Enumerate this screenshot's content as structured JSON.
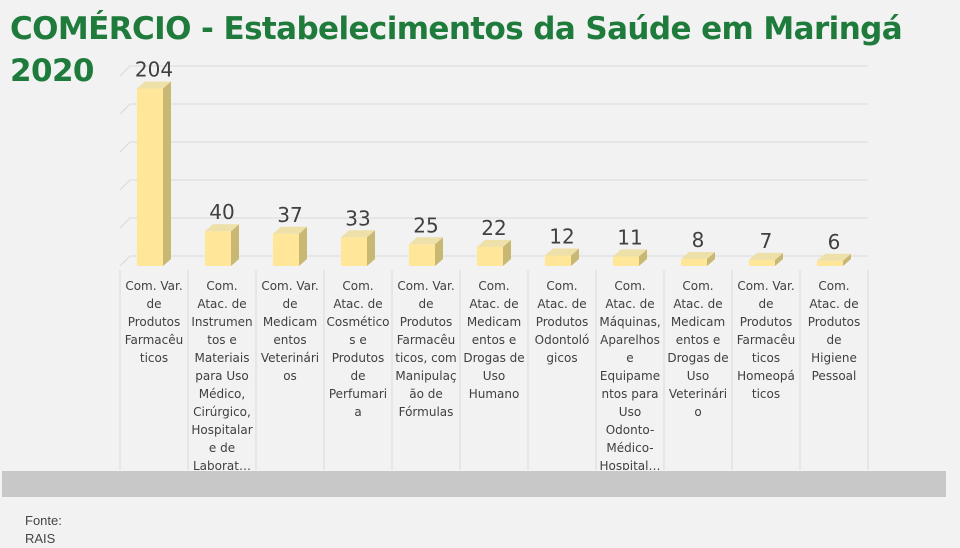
{
  "header": {
    "title": "COMÉRCIO - Estabelecimentos da Saúde em Maringá 2020"
  },
  "footer": {
    "source_label": "Fonte:",
    "source_value": "RAIS"
  },
  "chart_data": {
    "type": "bar",
    "style": "3d-column",
    "grid": true,
    "legend": "none",
    "bar_color": "#ffe699",
    "ylim": [
      0,
      220
    ],
    "categories": [
      "Com. Var. de Produtos Farmacêuticos",
      "Com. Atac. de Instrumentos e Materiais para Uso Médico, Cirúrgico, Hospitalar e de Laborat…",
      "Com. Var. de Medicamentos Veterinários",
      "Com. Atac. de Cosméticos e Produtos de Perfumaria",
      "Com. Var. de Produtos Farmacêuticos, com Manipulação de Fórmulas",
      "Com. Atac. de Medicamentos e Drogas de Uso Humano",
      "Com. Atac. de Produtos Odontológicos",
      "Com. Atac. de Máquinas, Aparelhos e Equipamentos para Uso Odonto-Médico-Hospital…",
      "Com. Atac. de Medicamentos e Drogas de Uso Veterinário",
      "Com. Var. de Produtos Farmacêuticos Homeopáticos",
      "Com. Atac. de Produtos de Higiene Pessoal"
    ],
    "category_lines": [
      [
        "Com. Var.",
        "de",
        "Produtos",
        "Farmacêu",
        "ticos"
      ],
      [
        "Com.",
        "Atac. de",
        "Instrumen",
        "tos e",
        "Materiais",
        "para Uso",
        "Médico,",
        "Cirúrgico,",
        "Hospitalar",
        "e de",
        "Laborat…"
      ],
      [
        "Com. Var.",
        "de",
        "Medicam",
        "entos",
        "Veterinári",
        "os"
      ],
      [
        "Com.",
        "Atac. de",
        "Cosmético",
        "s e",
        "Produtos",
        "de",
        "Perfumari",
        "a"
      ],
      [
        "Com. Var.",
        "de",
        "Produtos",
        "Farmacêu",
        "ticos, com",
        "Manipulaç",
        "ão de",
        "Fórmulas"
      ],
      [
        "Com.",
        "Atac. de",
        "Medicam",
        "entos e",
        "Drogas de",
        "Uso",
        "Humano"
      ],
      [
        "Com.",
        "Atac. de",
        "Produtos",
        "Odontoló",
        "gicos"
      ],
      [
        "Com.",
        "Atac. de",
        "Máquinas,",
        "Aparelhos",
        "e",
        "Equipame",
        "ntos para",
        "Uso",
        "Odonto-",
        "Médico-",
        "Hospital…"
      ],
      [
        "Com.",
        "Atac. de",
        "Medicam",
        "entos e",
        "Drogas de",
        "Uso",
        "Veterinári",
        "o"
      ],
      [
        "Com. Var.",
        "de",
        "Produtos",
        "Farmacêu",
        "ticos",
        "Homeopá",
        "ticos"
      ],
      [
        "Com.",
        "Atac. de",
        "Produtos",
        "de",
        "Higiene",
        "Pessoal"
      ]
    ],
    "values": [
      204,
      40,
      37,
      33,
      25,
      22,
      12,
      11,
      8,
      7,
      6
    ]
  }
}
